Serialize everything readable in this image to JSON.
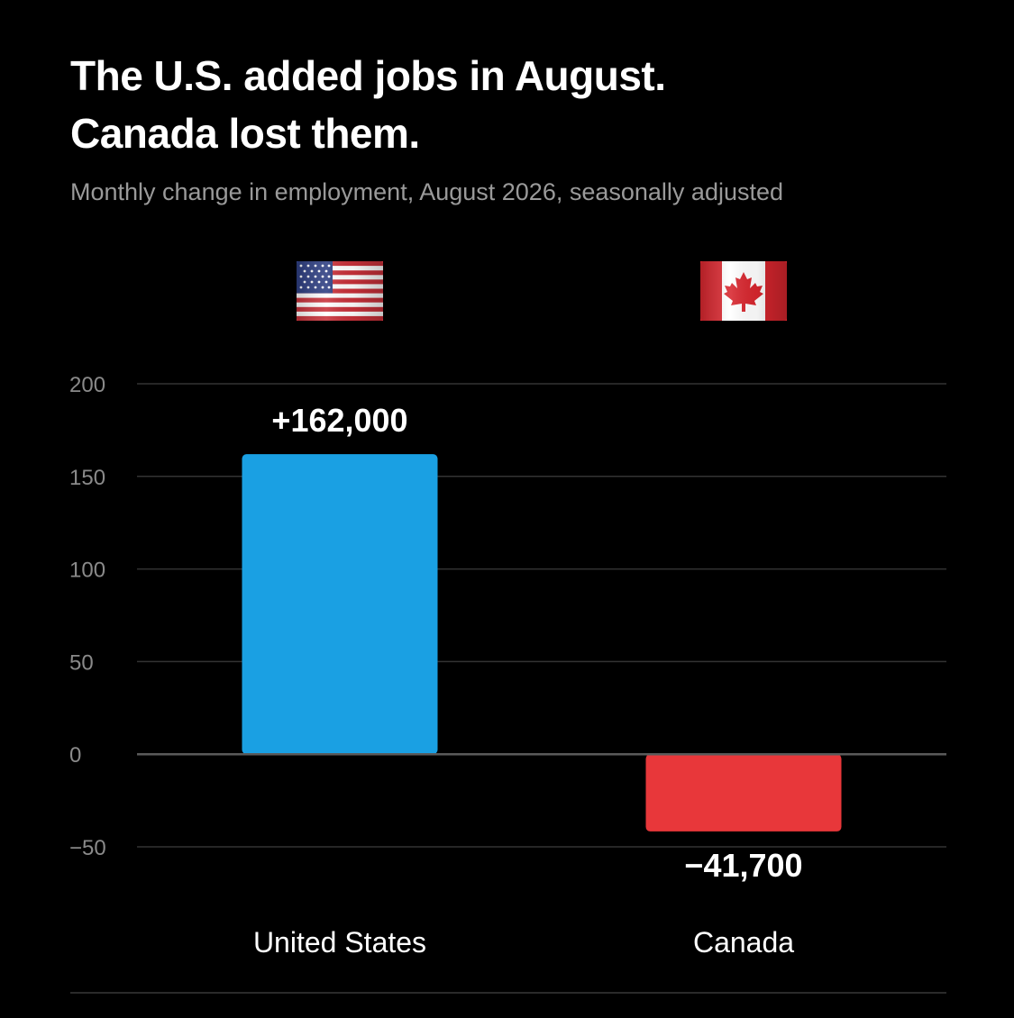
{
  "title_lines": [
    "The U.S. added jobs in August.",
    "Canada lost them."
  ],
  "subtitle": "Monthly change in employment, August 2026, seasonally adjusted",
  "colors": {
    "background": "#000000",
    "grid": "#333333",
    "zero_line": "#5a5a5a",
    "us_bar": "#1aa0e3",
    "canada_bar": "#e8373a"
  },
  "chart_data": {
    "type": "bar",
    "categories": [
      "United States",
      "Canada"
    ],
    "values": [
      162,
      -41.7
    ],
    "value_labels": [
      "+162,000",
      "−41,700"
    ],
    "category_icons": [
      "us-flag-icon",
      "canada-flag-icon"
    ],
    "yticks": [
      200,
      150,
      100,
      50,
      0,
      -50
    ],
    "ytick_labels": [
      "200",
      "150",
      "100",
      "50",
      "0",
      "−50"
    ],
    "ylim": [
      -50,
      200
    ],
    "grid": true,
    "legend": "none"
  }
}
